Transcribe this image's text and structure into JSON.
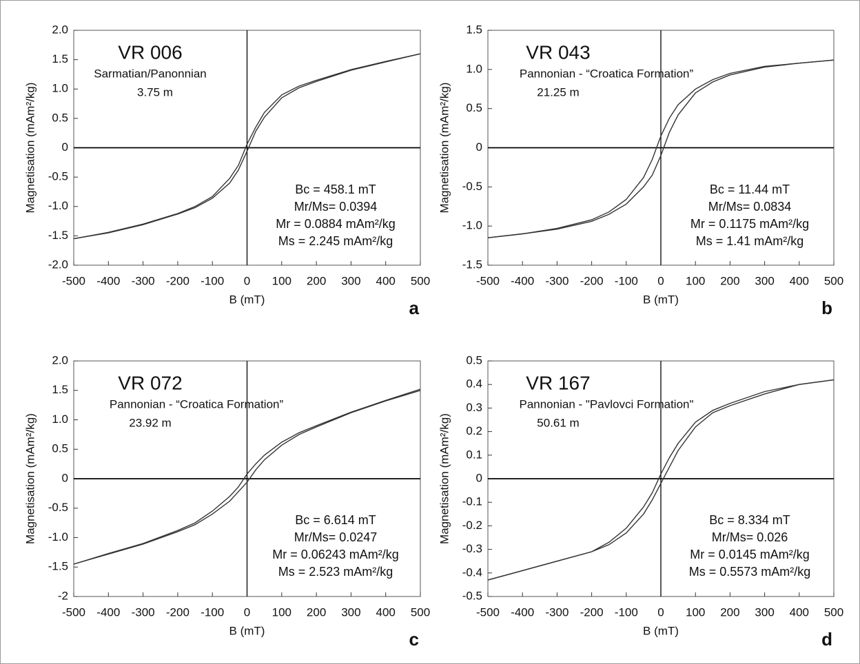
{
  "chart_data": [
    {
      "type": "line",
      "title": "VR 006",
      "subtitle": "Sarmatian/Panonnian",
      "depth": "3.75 m",
      "annotations": [
        "Bc = 458.1 mT",
        "Mr/Ms= 0.0394",
        "Mr = 0.0884 mAm²/kg",
        "Ms = 2.245 mAm²/kg"
      ],
      "panel_label": "a",
      "x_label": "B (mT)",
      "y_label": "Magnetisation (mAm²/kg)",
      "x": [
        -500,
        -400,
        -300,
        -200,
        -150,
        -100,
        -50,
        -25,
        0,
        25,
        50,
        100,
        150,
        200,
        300,
        400,
        500
      ],
      "series": [
        {
          "color": "#333333",
          "values": [
            -1.55,
            -1.44,
            -1.3,
            -1.12,
            -1.0,
            -0.83,
            -0.52,
            -0.3,
            0.06,
            0.35,
            0.6,
            0.9,
            1.05,
            1.15,
            1.33,
            1.47,
            1.6
          ]
        },
        {
          "color": "#333333",
          "values": [
            -1.55,
            -1.45,
            -1.31,
            -1.13,
            -1.02,
            -0.86,
            -0.6,
            -0.38,
            -0.06,
            0.28,
            0.52,
            0.85,
            1.02,
            1.13,
            1.32,
            1.46,
            1.6
          ]
        }
      ],
      "xlim": [
        -500,
        500
      ],
      "ylim": [
        -2,
        2
      ],
      "xticks": [
        -500,
        -400,
        -300,
        -200,
        -100,
        0,
        100,
        200,
        300,
        400,
        500
      ],
      "yticks": [
        {
          "value": 2,
          "label": "2.0"
        },
        1.5,
        {
          "value": 1,
          "label": "1.0"
        },
        0.5,
        0,
        -0.5,
        {
          "value": -1,
          "label": "-1.0"
        },
        -1.5,
        {
          "value": -2,
          "label": "-2.0"
        }
      ]
    },
    {
      "type": "line",
      "title": "VR 043",
      "subtitle": "Pannonian - “Croatica Formation”",
      "depth": "21.25 m",
      "annotations": [
        "Bc = 11.44 mT",
        "Mr/Ms= 0.0834",
        "Mr = 0.1175 mAm²/kg",
        "Ms = 1.41 mAm²/kg"
      ],
      "panel_label": "b",
      "x_label": "B (mT)",
      "y_label": "Magnetisation (mAm²/kg)",
      "x": [
        -500,
        -400,
        -300,
        -200,
        -150,
        -100,
        -50,
        -25,
        0,
        25,
        50,
        100,
        150,
        200,
        300,
        400,
        500
      ],
      "series": [
        {
          "color": "#333333",
          "values": [
            -1.15,
            -1.1,
            -1.03,
            -0.92,
            -0.82,
            -0.66,
            -0.38,
            -0.15,
            0.15,
            0.38,
            0.55,
            0.75,
            0.87,
            0.95,
            1.04,
            1.08,
            1.12
          ]
        },
        {
          "color": "#333333",
          "values": [
            -1.15,
            -1.1,
            -1.04,
            -0.94,
            -0.85,
            -0.72,
            -0.5,
            -0.35,
            -0.1,
            0.2,
            0.42,
            0.7,
            0.84,
            0.93,
            1.03,
            1.08,
            1.12
          ]
        }
      ],
      "xlim": [
        -500,
        500
      ],
      "ylim": [
        -1.5,
        1.5
      ],
      "xticks": [
        -500,
        -400,
        -300,
        -200,
        -100,
        0,
        100,
        200,
        300,
        400,
        500
      ],
      "yticks": [
        1.5,
        {
          "value": 1,
          "label": "1.0"
        },
        0.5,
        0,
        -0.5,
        {
          "value": -1,
          "label": "-1.0"
        },
        -1.5
      ]
    },
    {
      "type": "line",
      "title": "VR 072",
      "subtitle": "Pannonian - “Croatica Formation”",
      "depth": "23.92 m",
      "annotations": [
        "Bc = 6.614 mT",
        "Mr/Ms= 0.0247",
        "Mr = 0.06243 mAm²/kg",
        "Ms = 2.523 mAm²/kg"
      ],
      "panel_label": "c",
      "x_label": "B (mT)",
      "y_label": "Magnetisation (mAm²/kg)",
      "x": [
        -500,
        -400,
        -300,
        -200,
        -150,
        -100,
        -50,
        -25,
        0,
        25,
        50,
        100,
        150,
        200,
        300,
        400,
        500
      ],
      "series": [
        {
          "color": "#333333",
          "values": [
            -1.45,
            -1.27,
            -1.1,
            -0.88,
            -0.75,
            -0.55,
            -0.3,
            -0.14,
            0.08,
            0.25,
            0.4,
            0.62,
            0.78,
            0.9,
            1.13,
            1.33,
            1.52
          ]
        },
        {
          "color": "#333333",
          "values": [
            -1.45,
            -1.28,
            -1.11,
            -0.9,
            -0.78,
            -0.6,
            -0.38,
            -0.22,
            -0.06,
            0.15,
            0.32,
            0.57,
            0.75,
            0.88,
            1.12,
            1.32,
            1.5
          ]
        }
      ],
      "xlim": [
        -500,
        500
      ],
      "ylim": [
        -2,
        2
      ],
      "xticks": [
        -500,
        -400,
        -300,
        -200,
        -100,
        0,
        100,
        200,
        300,
        400,
        500
      ],
      "yticks": [
        {
          "value": 2,
          "label": "2.0"
        },
        1.5,
        {
          "value": 1,
          "label": "1.0"
        },
        0.5,
        0,
        -0.5,
        {
          "value": -1,
          "label": "-1.0"
        },
        -1.5,
        -2
      ]
    },
    {
      "type": "line",
      "title": "VR 167",
      "subtitle": "Pannonian - \"Pavlovci Formation\"",
      "depth": "50.61 m",
      "annotations": [
        "Bc = 8.334 mT",
        "Mr/Ms= 0.026",
        "Mr = 0.0145 mAm²/kg",
        "Ms = 0.5573 mAm²/kg"
      ],
      "panel_label": "d",
      "x_label": "B (mT)",
      "y_label": "Magnetisation (mAm²/kg)",
      "x": [
        -500,
        -400,
        -300,
        -200,
        -150,
        -100,
        -50,
        -25,
        0,
        25,
        50,
        100,
        150,
        200,
        300,
        400,
        500
      ],
      "series": [
        {
          "color": "#333333",
          "values": [
            -0.43,
            -0.39,
            -0.35,
            -0.31,
            -0.27,
            -0.21,
            -0.12,
            -0.06,
            0.02,
            0.09,
            0.15,
            0.24,
            0.29,
            0.32,
            0.37,
            0.4,
            0.42
          ]
        },
        {
          "color": "#333333",
          "values": [
            -0.43,
            -0.39,
            -0.35,
            -0.31,
            -0.28,
            -0.23,
            -0.15,
            -0.09,
            -0.02,
            0.05,
            0.12,
            0.22,
            0.28,
            0.31,
            0.36,
            0.4,
            0.42
          ]
        }
      ],
      "xlim": [
        -500,
        500
      ],
      "ylim": [
        -0.5,
        0.5
      ],
      "xticks": [
        -500,
        -400,
        -300,
        -200,
        -100,
        0,
        100,
        200,
        300,
        400,
        500
      ],
      "yticks": [
        0.5,
        0.4,
        0.3,
        0.2,
        0.1,
        0,
        -0.1,
        -0.2,
        -0.3,
        -0.4,
        -0.5
      ]
    }
  ]
}
